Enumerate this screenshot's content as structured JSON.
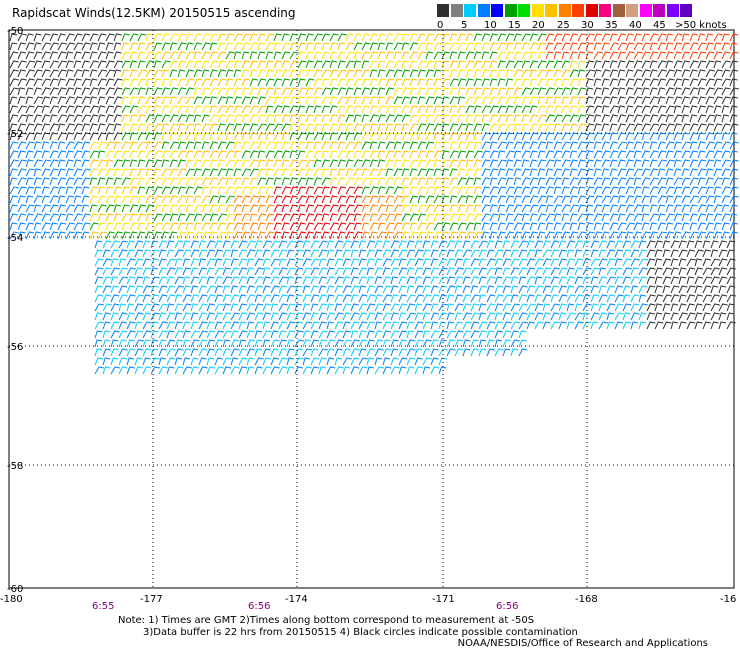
{
  "title": "Rapidscat Winds(12.5KM) 20150515 ascending",
  "legend": {
    "colors": [
      "#303030",
      "#808080",
      "#00ccff",
      "#0080ff",
      "#0000ff",
      "#00a000",
      "#00e000",
      "#ffe000",
      "#ffc000",
      "#ff8000",
      "#ff4000",
      "#e00000",
      "#ff0080",
      "#a06040",
      "#d0a080",
      "#ff00ff",
      "#c000c0",
      "#8000ff",
      "#6000c0"
    ],
    "labels": [
      "0",
      "5",
      "10",
      "15",
      "20",
      "25",
      "30",
      "35",
      "40",
      "45",
      ">50 knots"
    ]
  },
  "map": {
    "lat_labels": [
      "-50",
      "-52",
      "-54",
      "-56",
      "-58",
      "-60"
    ],
    "lon_labels": [
      "-180",
      "-177",
      "-174",
      "-171",
      "-168",
      "-16"
    ],
    "time_labels": [
      "6:55",
      "6:56",
      "6:56"
    ]
  },
  "notes": {
    "line1": "Note: 1) Times are GMT 2)Times along bottom correspond to measurement at -50S",
    "line2": "3)Data buffer is 22 hrs from 20150515 4) Black circles indicate possible contamination"
  },
  "credit": "NOAA/NESDIS/Office of Research and Applications"
}
